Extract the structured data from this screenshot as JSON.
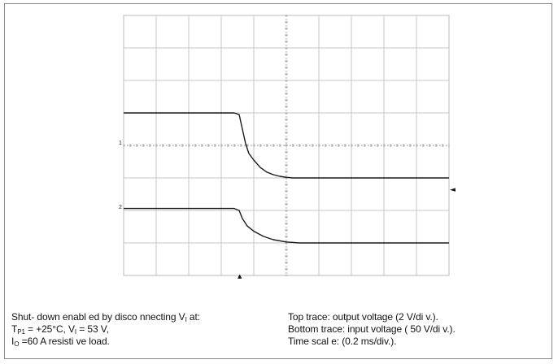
{
  "chart_data": {
    "type": "line",
    "grid": true,
    "divisions": {
      "x": 10,
      "y": 8
    },
    "time_scale_ms_per_div": 0.2,
    "series": [
      {
        "name": "Top trace: output voltage",
        "volts_per_div": 2,
        "baseline_div": 5,
        "x_div": [
          0,
          3.4,
          3.55,
          3.65,
          3.75,
          3.85,
          4.0,
          4.2,
          4.4,
          4.6,
          4.8,
          5.0,
          5.2,
          5.4,
          10
        ],
        "y_div": [
          2.0,
          2.0,
          1.95,
          1.5,
          1.05,
          0.75,
          0.55,
          0.32,
          0.18,
          0.1,
          0.05,
          0.02,
          0.0,
          0.0,
          0.0
        ]
      },
      {
        "name": "Bottom trace: input voltage",
        "volts_per_div": 50,
        "baseline_div": 7,
        "x_div": [
          0,
          3.4,
          3.55,
          3.65,
          3.8,
          4.0,
          4.3,
          4.6,
          5.0,
          5.4,
          10
        ],
        "y_div": [
          1.06,
          1.06,
          1.0,
          0.75,
          0.52,
          0.36,
          0.2,
          0.1,
          0.03,
          0.0,
          0.0
        ]
      }
    ],
    "markers": {
      "ch1": "1",
      "ch2": "2",
      "trigger_level": "◄",
      "trigger_position": "▲"
    }
  },
  "caption": {
    "left": {
      "line1_pre": "Shut- down enabl ed by disco nnecting V",
      "line1_sub": "I",
      "line1_post": " at:",
      "line2_pre": "T",
      "line2_sub": "P1",
      "line2_mid": " = +25°C, V",
      "line2_sub2": "I",
      "line2_post": " = 53 V,",
      "line3_pre": "I",
      "line3_sub": "O",
      "line3_post": " =60 A resisti ve load."
    },
    "right": {
      "line1": "Top trace: output voltage (2 V/di v.).",
      "line2": "Bottom trace: input voltage ( 50 V/di v.).",
      "line3": "Time scal e: (0.2 ms/div.)."
    }
  }
}
